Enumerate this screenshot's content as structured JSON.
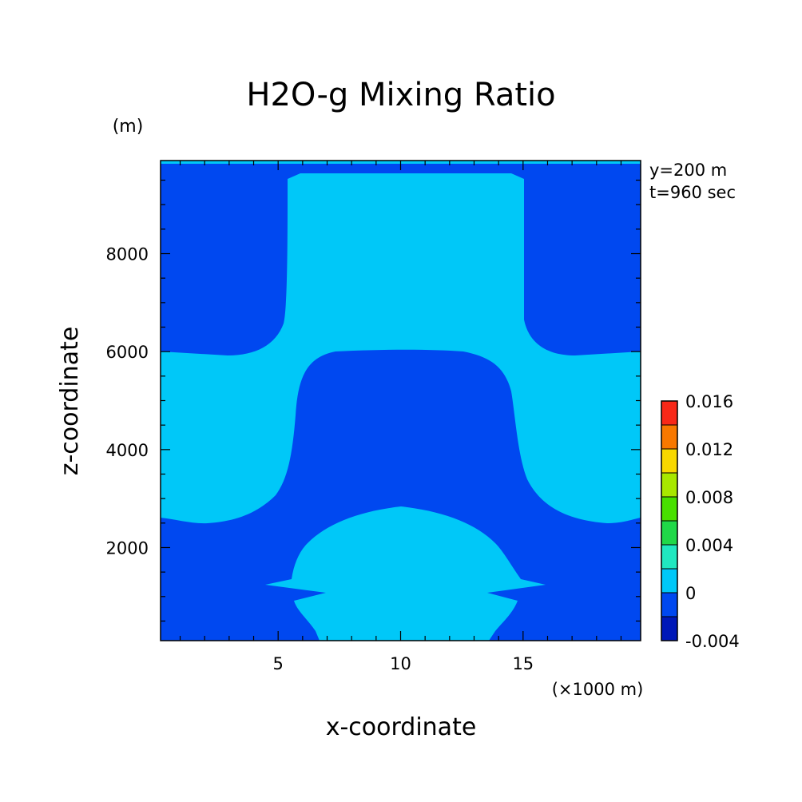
{
  "chart_data": {
    "type": "heatmap",
    "title": "H2O-g Mixing Ratio",
    "xlabel": "x-coordinate",
    "ylabel": "z-coordinate",
    "x_unit": "(×1000 m)",
    "y_unit": "(m)",
    "annotations": [
      "y=200 m",
      "t=960 sec"
    ],
    "xlim": [
      0.2,
      19.8
    ],
    "ylim": [
      100,
      9900
    ],
    "x_ticks": [
      5,
      10,
      15
    ],
    "y_ticks": [
      2000,
      4000,
      6000,
      8000
    ],
    "colorbar": {
      "levels": [
        -0.004,
        -0.002,
        0,
        0.002,
        0.004,
        0.006,
        0.008,
        0.01,
        0.012,
        0.014,
        0.016
      ],
      "tick_labels": [
        "0.016",
        "0.012",
        "0.008",
        "0.004",
        "0",
        "-0.004"
      ],
      "colors": [
        "#0018b8",
        "#0048f0",
        "#00c8f8",
        "#20e8c0",
        "#20d848",
        "#48e000",
        "#a8e800",
        "#f8d800",
        "#f87800",
        "#f82818"
      ]
    },
    "regions": [
      {
        "level_index": 1,
        "description": "background band (-0.002 to 0)"
      },
      {
        "level_index": 2,
        "description": "moist band (0 to 0.002) — central column, mid layer and low dome"
      }
    ]
  }
}
